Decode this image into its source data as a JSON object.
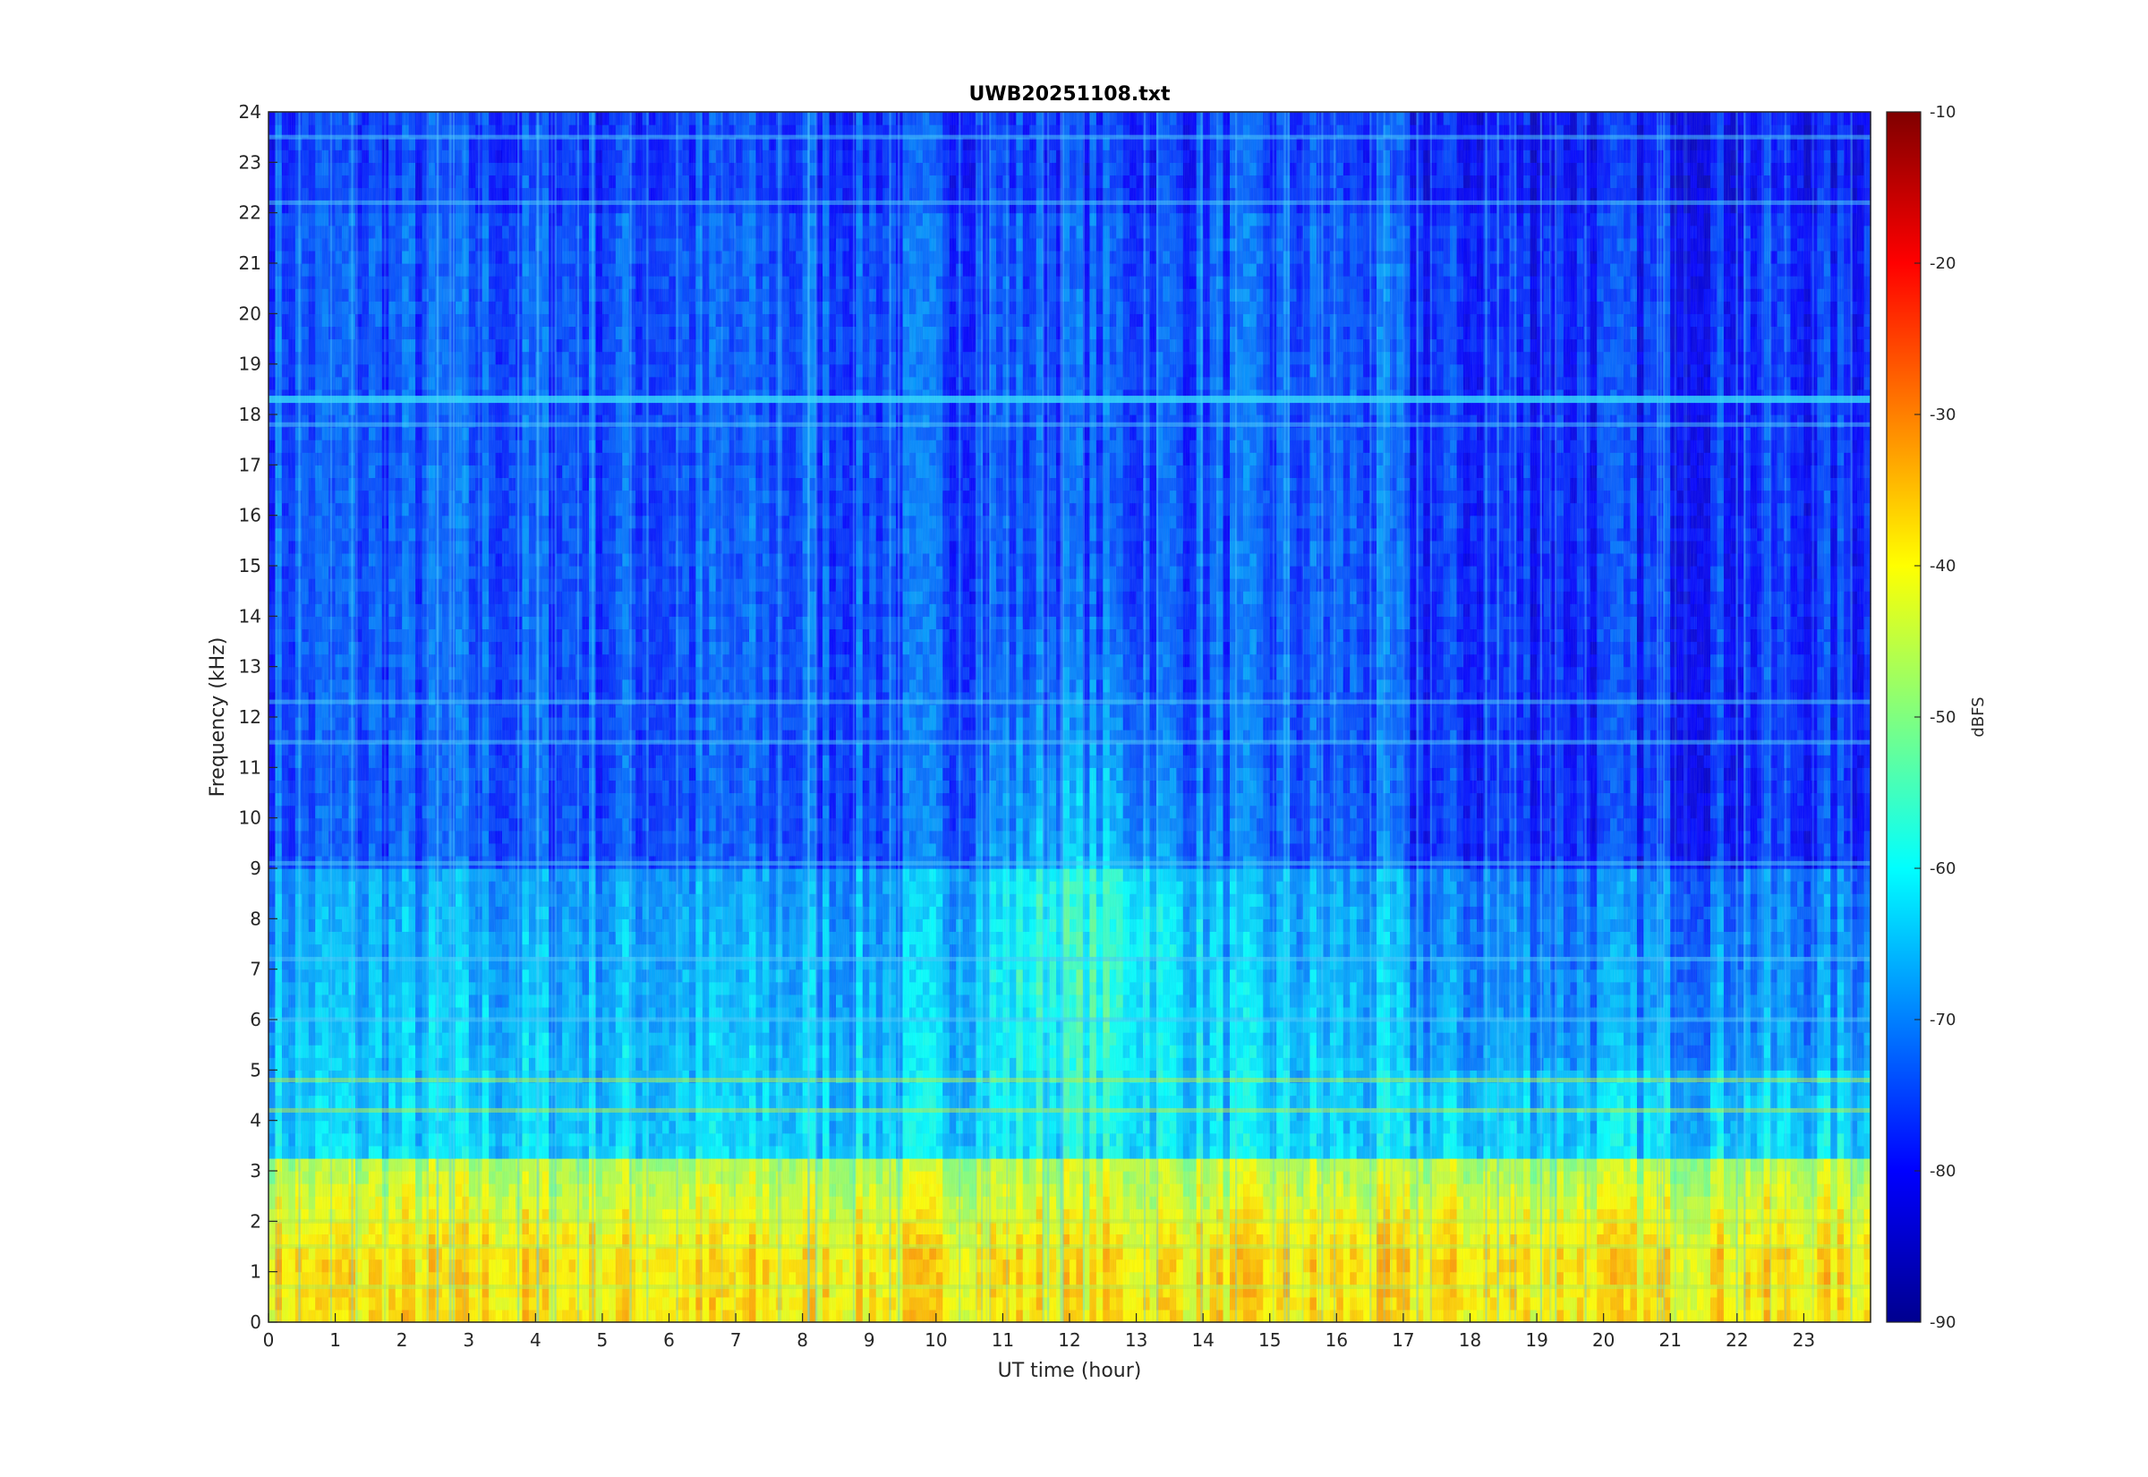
{
  "chart_data": {
    "type": "heatmap",
    "title": "UWB20251108.txt",
    "xlabel": "UT time (hour)",
    "ylabel": "Frequency (kHz)",
    "xlim": [
      0,
      24
    ],
    "ylim": [
      0,
      24
    ],
    "x_ticks": [
      0,
      1,
      2,
      3,
      4,
      5,
      6,
      7,
      8,
      9,
      10,
      11,
      12,
      13,
      14,
      15,
      16,
      17,
      18,
      19,
      20,
      21,
      22,
      23
    ],
    "y_ticks": [
      0,
      1,
      2,
      3,
      4,
      5,
      6,
      7,
      8,
      9,
      10,
      11,
      12,
      13,
      14,
      15,
      16,
      17,
      18,
      19,
      20,
      21,
      22,
      23,
      24
    ],
    "colorbar": {
      "label": "dBFS",
      "range": [
        -90,
        -10
      ],
      "ticks": [
        -10,
        -20,
        -30,
        -40,
        -50,
        -60,
        -70,
        -80,
        -90
      ],
      "colormap": "jet"
    },
    "features": {
      "low_band_dBFS": -42,
      "mid_band_dBFS": -63,
      "high_band_dBFS": -74,
      "tone_lines_kHz": [
        0.7,
        1.5,
        2.0,
        4.2,
        4.8,
        6.0,
        7.2,
        9.1,
        11.5,
        12.3,
        17.8,
        18.3,
        22.2,
        23.5
      ],
      "strong_line_kHz": 18.3,
      "broadband_hump_hours": [
        10.5,
        15.5
      ]
    }
  }
}
